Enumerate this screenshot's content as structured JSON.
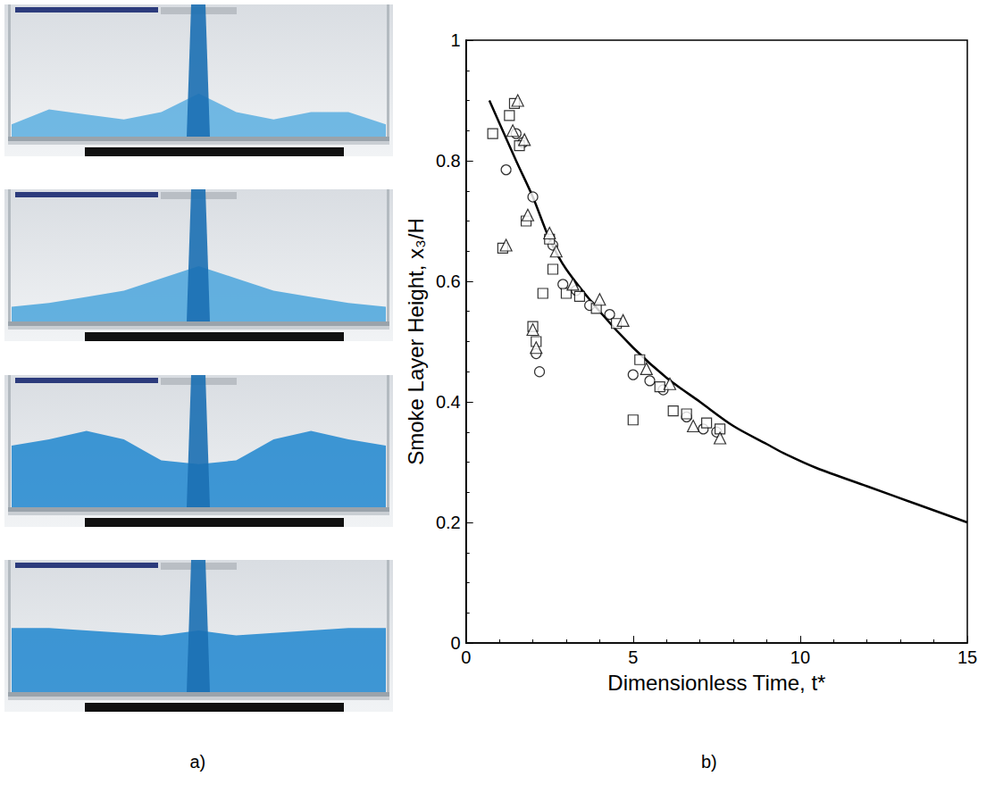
{
  "panel_labels": [
    "a)",
    "b)"
  ],
  "chart_data": {
    "type": "scatter",
    "x_label": "Dimensionless Time, t*",
    "y_label": "Smoke Layer Height, x₃/H",
    "xlim": [
      0,
      15
    ],
    "xticks": [
      0,
      5,
      10,
      15
    ],
    "ylim": [
      0,
      1
    ],
    "yticks": [
      0,
      0.2,
      0.4,
      0.6,
      0.8,
      1
    ],
    "grid": false,
    "series": [
      {
        "type": "line",
        "color": "#000000",
        "line_style": "solid",
        "x": [
          0.7,
          1.5,
          2,
          2.5,
          3,
          4,
          5,
          6,
          7,
          8,
          9,
          9.5,
          10.5,
          12,
          13.5,
          15
        ],
        "values": [
          0.9,
          0.8,
          0.74,
          0.67,
          0.62,
          0.55,
          0.49,
          0.44,
          0.4,
          0.36,
          0.33,
          0.315,
          0.29,
          0.26,
          0.23,
          0.2
        ]
      },
      {
        "type": "scatter",
        "marker": "circle",
        "color": "#000000",
        "x": [
          1.2,
          1.5,
          1.7,
          2,
          2.1,
          2.2,
          2.6,
          2.9,
          3.3,
          3.7,
          4.3,
          5,
          5.5,
          5.9,
          6.6,
          7.1,
          7.5
        ],
        "values": [
          0.785,
          0.845,
          0.83,
          0.74,
          0.48,
          0.45,
          0.66,
          0.595,
          0.585,
          0.56,
          0.545,
          0.445,
          0.435,
          0.42,
          0.375,
          0.355,
          0.35
        ]
      },
      {
        "type": "scatter",
        "marker": "square",
        "color": "#000000",
        "x": [
          0.8,
          1.1,
          1.3,
          1.45,
          1.6,
          1.8,
          2,
          2.1,
          2.3,
          2.5,
          2.6,
          3,
          3.4,
          3.9,
          4.5,
          5.2,
          5,
          5.8,
          6.2,
          6.6,
          7.2,
          7.6
        ],
        "values": [
          0.845,
          0.655,
          0.875,
          0.895,
          0.825,
          0.7,
          0.525,
          0.5,
          0.58,
          0.67,
          0.62,
          0.58,
          0.575,
          0.555,
          0.53,
          0.47,
          0.37,
          0.425,
          0.385,
          0.38,
          0.365,
          0.355
        ]
      },
      {
        "type": "scatter",
        "marker": "triangle",
        "color": "#000000",
        "x": [
          1.2,
          1.4,
          1.55,
          1.75,
          1.85,
          2,
          2.1,
          2.5,
          2.7,
          3.2,
          4,
          4.7,
          5.4,
          6.1,
          6.8,
          7.6
        ],
        "values": [
          0.66,
          0.85,
          0.9,
          0.835,
          0.71,
          0.52,
          0.49,
          0.68,
          0.65,
          0.595,
          0.57,
          0.535,
          0.455,
          0.43,
          0.36,
          0.34
        ]
      }
    ]
  }
}
